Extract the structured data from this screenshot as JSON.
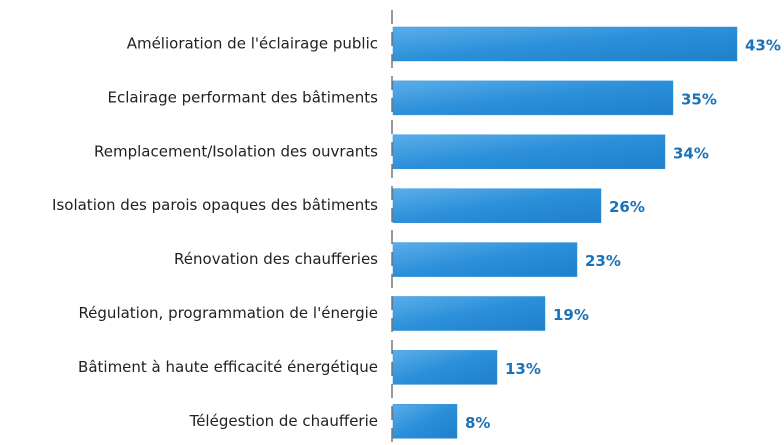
{
  "chart_data": {
    "type": "bar",
    "orientation": "horizontal",
    "categories": [
      "Amélioration de l'éclairage public",
      "Eclairage performant des bâtiments",
      "Remplacement/Isolation des ouvrants",
      "Isolation des parois opaques des bâtiments",
      "Rénovation des chaufferies",
      "Régulation, programmation de l'énergie",
      "Bâtiment à haute efficacité énergétique",
      "Télégestion de chaufferie"
    ],
    "values": [
      43,
      35,
      34,
      26,
      23,
      19,
      13,
      8
    ],
    "value_labels": [
      "43%",
      "35%",
      "34%",
      "26%",
      "23%",
      "19%",
      "13%",
      "8%"
    ],
    "color": "#2b8fd9",
    "label_color": "#1a72b8"
  }
}
